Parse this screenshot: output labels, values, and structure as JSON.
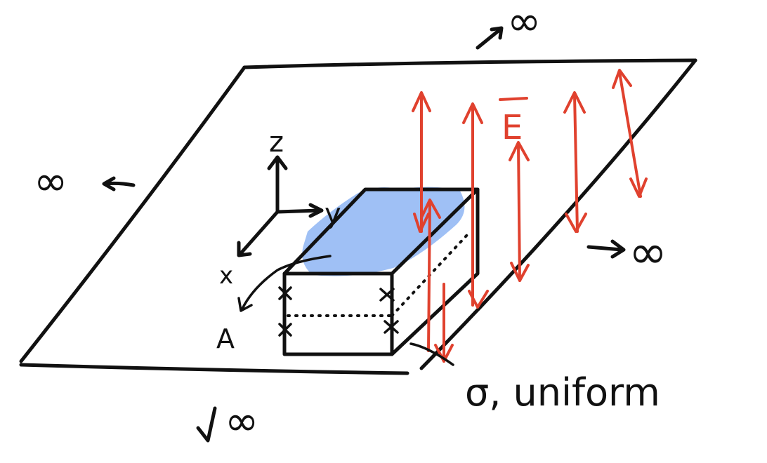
{
  "labels": {
    "infinity_top": "∞",
    "infinity_left": "∞",
    "infinity_right": "∞",
    "infinity_bottom": "∞",
    "axis_z": "z",
    "axis_y": "y",
    "axis_x": "x",
    "point_a": "A",
    "field_label": "E",
    "sigma_note": "σ, uniform"
  },
  "colors": {
    "ink": "#111111",
    "field": "#e0412e",
    "charge_region": "#9fc0f5"
  },
  "icons": {
    "plane": "infinite-plane",
    "box": "gaussian-box",
    "charge_marks": "x-marks"
  }
}
